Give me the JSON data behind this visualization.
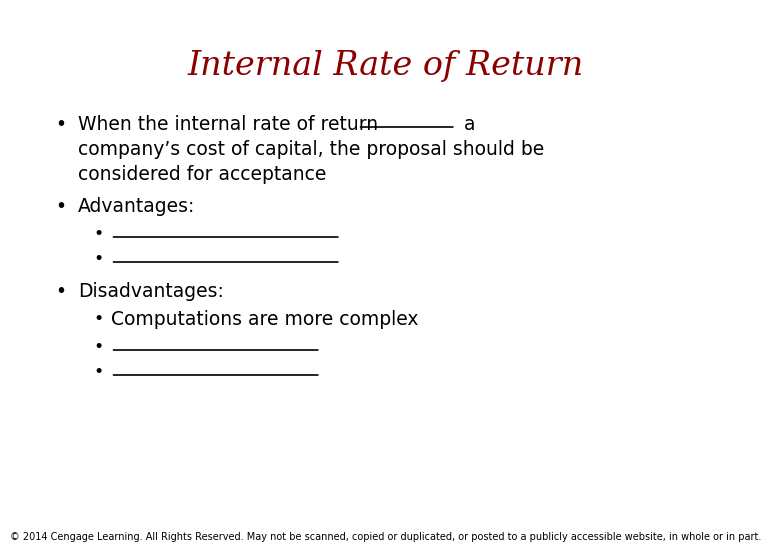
{
  "title": "Internal Rate of Return",
  "title_color": "#8B0000",
  "title_fontsize": 24,
  "background_color": "#FFFFFF",
  "footer": "© 2014 Cengage Learning. All Rights Reserved. May not be scanned, copied or duplicated, or posted to a publicly accessible website, in whole or in part.",
  "footer_fontsize": 7.0,
  "text_color": "#000000",
  "main_fontsize": 13.5,
  "sub_fontsize": 13.5,
  "bullet_symbol": "•"
}
